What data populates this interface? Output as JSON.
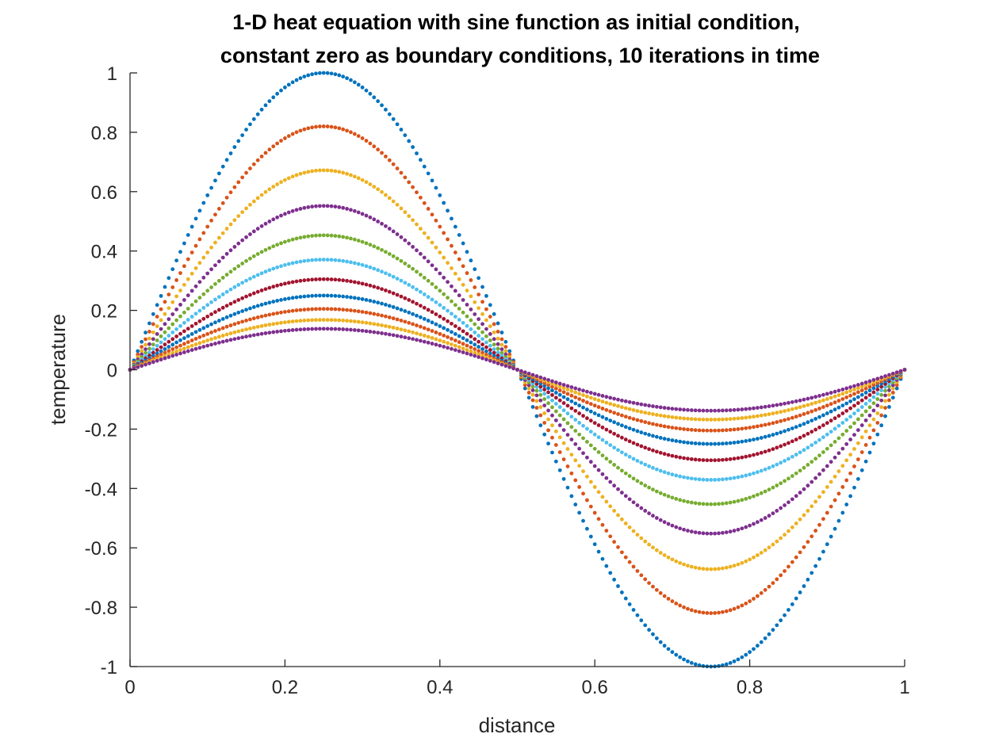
{
  "chart_data": {
    "type": "scatter",
    "title_lines": [
      "1-D heat equation with sine function as initial condition,",
      "constant zero as boundary conditions, 10 iterations in time"
    ],
    "xlabel": "distance",
    "ylabel": "temperature",
    "xlim": [
      0,
      1
    ],
    "ylim": [
      -1,
      1
    ],
    "x_ticks": [
      "0",
      "0.2",
      "0.4",
      "0.6",
      "0.8",
      "1"
    ],
    "y_ticks": [
      "-1",
      "-0.8",
      "-0.6",
      "-0.4",
      "-0.2",
      "0",
      "0.2",
      "0.4",
      "0.6",
      "0.8",
      "1"
    ],
    "grid": false,
    "legend": "none",
    "curve_shape": "amplitude * sin(2*pi*x)",
    "points_per_series": 200,
    "series": [
      {
        "amplitude": 1.0,
        "color": "#0072BD"
      },
      {
        "amplitude": 0.82,
        "color": "#D95319"
      },
      {
        "amplitude": 0.672,
        "color": "#EDB120"
      },
      {
        "amplitude": 0.552,
        "color": "#7E2F8E"
      },
      {
        "amplitude": 0.453,
        "color": "#77AC30"
      },
      {
        "amplitude": 0.371,
        "color": "#4DBEEE"
      },
      {
        "amplitude": 0.305,
        "color": "#A2142F"
      },
      {
        "amplitude": 0.25,
        "color": "#0072BD"
      },
      {
        "amplitude": 0.205,
        "color": "#D95319"
      },
      {
        "amplitude": 0.168,
        "color": "#EDB120"
      },
      {
        "amplitude": 0.138,
        "color": "#7E2F8E"
      }
    ]
  }
}
